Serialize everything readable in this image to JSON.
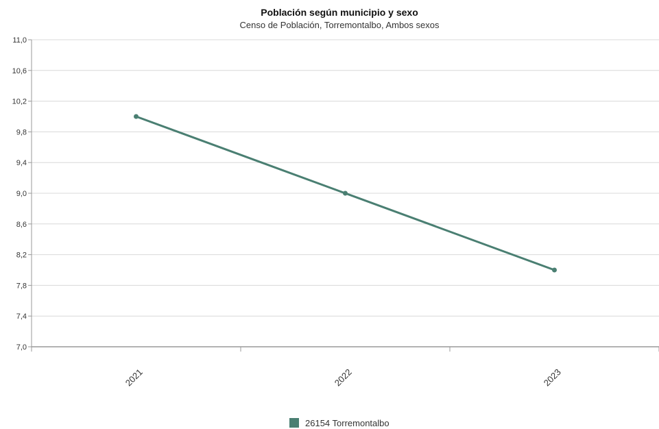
{
  "chart_data": {
    "type": "line",
    "title": "Población según municipio y sexo",
    "subtitle": "Censo de Población, Torremontalbo, Ambos sexos",
    "xlabel": "",
    "ylabel": "",
    "categories": [
      "2021",
      "2022",
      "2023"
    ],
    "series": [
      {
        "name": "26154 Torremontalbo",
        "values": [
          10.0,
          9.0,
          8.0
        ],
        "color": "#4a7f72"
      }
    ],
    "ylim": [
      7.0,
      11.0
    ],
    "yticks": [
      "7,0",
      "7,4",
      "7,8",
      "8,2",
      "8,6",
      "9,0",
      "9,4",
      "9,8",
      "10,2",
      "10,6",
      "11,0"
    ],
    "grid": true,
    "legend_position": "bottom-center"
  }
}
